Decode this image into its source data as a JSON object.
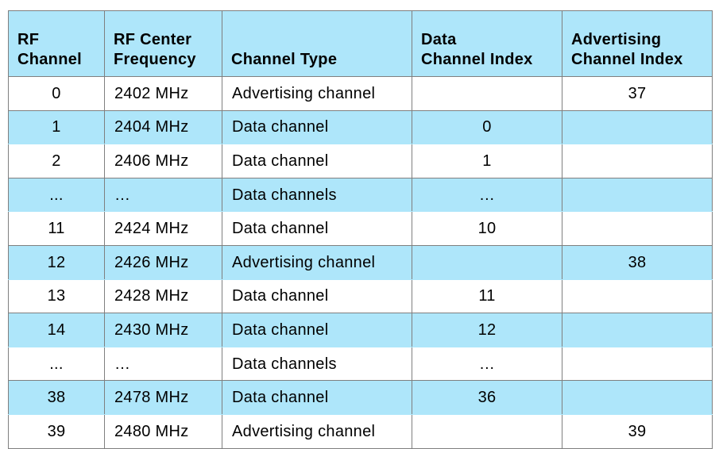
{
  "table": {
    "headers": [
      [
        "RF",
        "Channel"
      ],
      [
        "RF Center",
        "Frequency"
      ],
      [
        "Channel Type"
      ],
      [
        "Data",
        "Channel Index"
      ],
      [
        "Advertising",
        "Channel Index"
      ]
    ],
    "rows": [
      {
        "rf_channel": "0",
        "frequency": "2402 MHz",
        "type": "Advertising channel",
        "data_index": "",
        "adv_index": "37"
      },
      {
        "rf_channel": "1",
        "frequency": "2404 MHz",
        "type": "Data channel",
        "data_index": "0",
        "adv_index": ""
      },
      {
        "rf_channel": "2",
        "frequency": "2406 MHz",
        "type": "Data channel",
        "data_index": "1",
        "adv_index": ""
      },
      {
        "rf_channel": "...",
        "frequency": "…",
        "type": "Data channels",
        "data_index": "…",
        "adv_index": ""
      },
      {
        "rf_channel": "11",
        "frequency": "2424 MHz",
        "type": "Data channel",
        "data_index": "10",
        "adv_index": ""
      },
      {
        "rf_channel": "12",
        "frequency": "2426 MHz",
        "type": "Advertising channel",
        "data_index": "",
        "adv_index": "38"
      },
      {
        "rf_channel": "13",
        "frequency": "2428 MHz",
        "type": "Data channel",
        "data_index": "11",
        "adv_index": ""
      },
      {
        "rf_channel": "14",
        "frequency": "2430 MHz",
        "type": "Data channel",
        "data_index": "12",
        "adv_index": ""
      },
      {
        "rf_channel": "...",
        "frequency": "…",
        "type": "Data channels",
        "data_index": "…",
        "adv_index": ""
      },
      {
        "rf_channel": "38",
        "frequency": "2478 MHz",
        "type": "Data channel",
        "data_index": "36",
        "adv_index": ""
      },
      {
        "rf_channel": "39",
        "frequency": "2480 MHz",
        "type": "Advertising channel",
        "data_index": "",
        "adv_index": "39"
      }
    ]
  },
  "colors": {
    "header_background": "#aee6fa",
    "stripe_background": "#aee6fa",
    "border": "#7f7f7f"
  }
}
